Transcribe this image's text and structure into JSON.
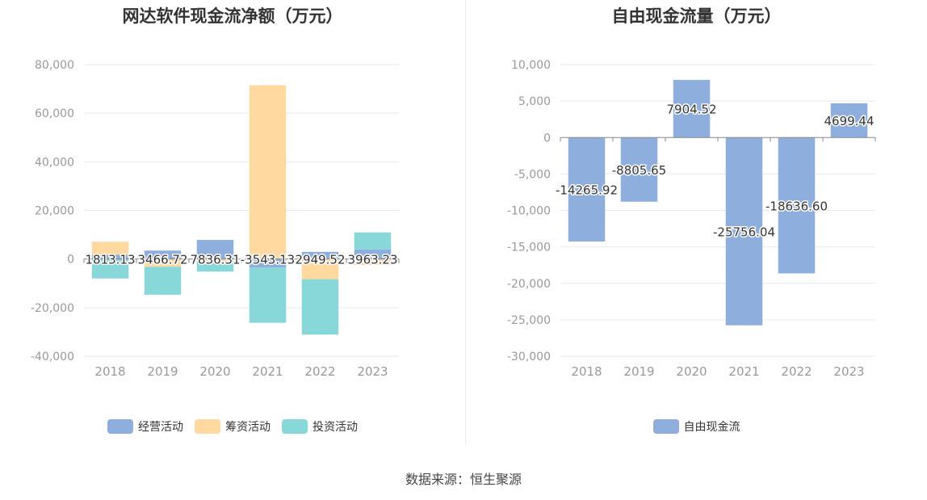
{
  "chart_data": [
    {
      "type": "bar",
      "stacked": true,
      "title": "网达软件现金流净额（万元）",
      "categories": [
        "2018",
        "2019",
        "2020",
        "2021",
        "2022",
        "2023"
      ],
      "y_ticks": [
        "80,000",
        "60,000",
        "40,000",
        "20,000",
        "0",
        "-20,000",
        "-40,000"
      ],
      "ylim": [
        -40000,
        80000
      ],
      "series": [
        {
          "name": "经营活动",
          "color": "#8eaedd",
          "values": [
            1813.13,
            3466.72,
            7836.31,
            -3543.13,
            2949.52,
            3963.23
          ]
        },
        {
          "name": "筹资活动",
          "color": "#ffd9a0",
          "values": [
            5300,
            -3200,
            -900,
            71500,
            -8300,
            -2500
          ]
        },
        {
          "name": "投资活动",
          "color": "#88d8da",
          "values": [
            -8000,
            -11500,
            -4300,
            -22700,
            -22800,
            7000
          ]
        }
      ],
      "data_labels": [
        "1813.13",
        "3466.72",
        "7836.31",
        "-3543.13",
        "2949.52",
        "3963.23"
      ],
      "legend": [
        "经营活动",
        "筹资活动",
        "投资活动"
      ],
      "legend_position": "bottom"
    },
    {
      "type": "bar",
      "title": "自由现金流量（万元）",
      "categories": [
        "2018",
        "2019",
        "2020",
        "2021",
        "2022",
        "2023"
      ],
      "y_ticks": [
        "10,000",
        "5,000",
        "0",
        "-5,000",
        "-10,000",
        "-15,000",
        "-20,000",
        "-25,000",
        "-30,000"
      ],
      "ylim": [
        -30000,
        10000
      ],
      "series": [
        {
          "name": "自由现金流",
          "color": "#8eaedd",
          "values": [
            -14265.92,
            -8805.65,
            7904.52,
            -25756.04,
            -18636.6,
            4699.44
          ]
        }
      ],
      "data_labels": [
        "-14265.92",
        "-8805.65",
        "7904.52",
        "-25756.04",
        "-18636.60",
        "4699.44"
      ],
      "legend": [
        "自由现金流"
      ],
      "legend_position": "bottom"
    }
  ],
  "source": "数据来源：恒生聚源"
}
